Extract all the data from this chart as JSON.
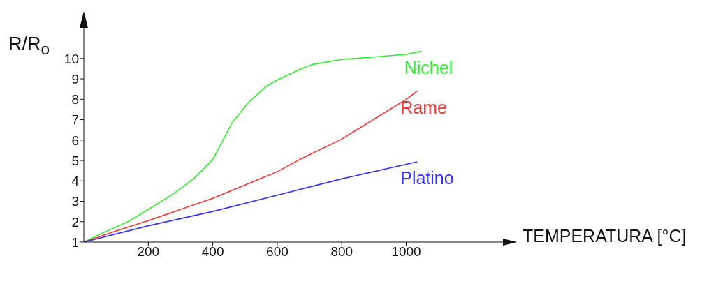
{
  "chart_data": {
    "type": "line",
    "xlabel": "TEMPERATURA [°C]",
    "ylabel": "R/R$_{o}$",
    "xlim": [
      0,
      1300
    ],
    "ylim": [
      1,
      11.5
    ],
    "xticks": [
      200,
      400,
      600,
      800,
      1000
    ],
    "yticks": [
      1,
      2,
      3,
      4,
      5,
      6,
      7,
      8,
      9,
      10
    ],
    "grid": false,
    "legend": false,
    "marker": "none",
    "line_style": "solid",
    "series": [
      {
        "name": "Nichel",
        "color": "#33ee33",
        "x": [
          0,
          65,
          137,
          200,
          281,
          340,
          400,
          460,
          508,
          563,
          600,
          675,
          707,
          800,
          1000,
          1046
        ],
        "values": [
          1,
          1.5,
          2,
          2.6,
          3.4,
          4.1,
          5.05,
          6.85,
          7.8,
          8.6,
          8.95,
          9.5,
          9.7,
          9.95,
          10.2,
          10.35
        ]
      },
      {
        "name": "Rame",
        "color": "#ff3333",
        "x": [
          0,
          100,
          200,
          400,
          600,
          670,
          800,
          1000,
          1034
        ],
        "values": [
          1,
          1.55,
          2.05,
          3.15,
          4.45,
          5.05,
          6.05,
          8,
          8.4
        ]
      },
      {
        "name": "Platino",
        "color": "#3333ff",
        "x": [
          0,
          200,
          400,
          600,
          800,
          1034
        ],
        "values": [
          1,
          1.8,
          2.5,
          3.3,
          4.1,
          4.93
        ]
      }
    ]
  }
}
